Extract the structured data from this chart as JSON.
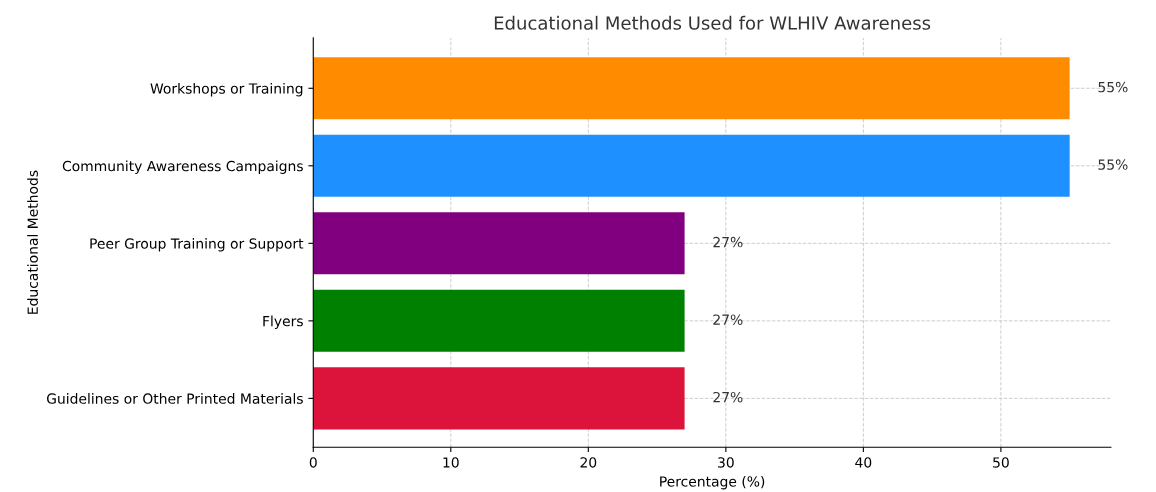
{
  "chart_data": {
    "type": "bar",
    "orientation": "horizontal",
    "title": "Educational Methods Used for WLHIV Awareness",
    "xlabel": "Percentage (%)",
    "ylabel": "Educational Methods",
    "categories": [
      "Workshops or Training",
      "Community Awareness Campaigns",
      "Peer Group Training or Support",
      "Flyers",
      "Guidelines or Other Printed Materials"
    ],
    "values": [
      55,
      55,
      27,
      27,
      27
    ],
    "colors": [
      "#ff8c00",
      "#1e90ff",
      "#800080",
      "#008000",
      "#dc143c"
    ],
    "value_labels": [
      "55%",
      "55%",
      "27%",
      "27%",
      "27%"
    ],
    "xlim": [
      0,
      58
    ],
    "xticks": [
      0,
      10,
      20,
      30,
      40,
      50
    ],
    "grid": true,
    "legend": false
  }
}
